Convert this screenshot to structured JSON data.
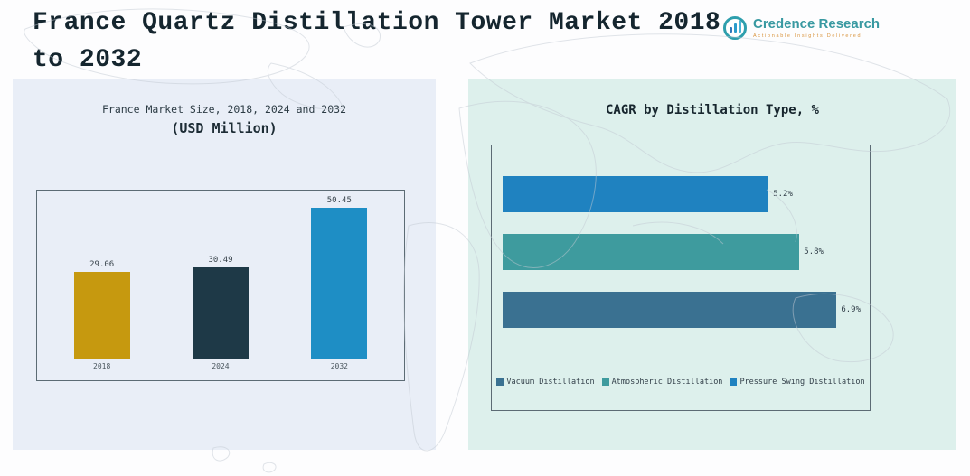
{
  "header": {
    "title": "France Quartz Distillation Tower Market 2018 to 2032"
  },
  "logo": {
    "brand": "Credence Research",
    "tagline": "Actionable Insights Delivered"
  },
  "chart_data": [
    {
      "type": "bar",
      "panel": "left",
      "title": "France Market Size, 2018, 2024 and 2032",
      "subtitle": "(USD Million)",
      "categories": [
        "2018",
        "2024",
        "2032"
      ],
      "values": [
        29.06,
        30.49,
        50.45
      ],
      "labels": [
        "29.06",
        "30.49",
        "50.45"
      ],
      "colors": [
        "#C6990F",
        "#1E3947",
        "#1E8EC5"
      ],
      "ylim": [
        0,
        55
      ],
      "grid": false,
      "legend_position": "none"
    },
    {
      "type": "bar",
      "orientation": "horizontal",
      "panel": "right",
      "title": "CAGR by Distillation Type, %",
      "categories": [
        "Pressure Swing Distillation",
        "Atmospheric Distillation",
        "Vacuum Distillation"
      ],
      "values": [
        5.2,
        5.8,
        6.9
      ],
      "labels": [
        "5.2%",
        "5.8%",
        "6.9%"
      ],
      "colors": [
        "#1F82C0",
        "#3E9B9E",
        "#3A7191"
      ],
      "xlim": [
        0,
        7
      ],
      "grid": false,
      "legend_position": "bottom",
      "legend": [
        {
          "label": "Vacuum Distillation",
          "color": "#3A7191"
        },
        {
          "label": "Atmospheric Distillation",
          "color": "#3E9B9E"
        },
        {
          "label": "Pressure Swing Distillation",
          "color": "#1F82C0"
        }
      ]
    }
  ]
}
